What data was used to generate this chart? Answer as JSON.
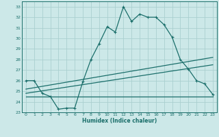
{
  "xlabel": "Humidex (Indice chaleur)",
  "bg_color": "#cce8e8",
  "grid_color": "#aacfcf",
  "line_color": "#1a6e6a",
  "xlim": [
    -0.5,
    23.5
  ],
  "ylim": [
    23,
    33.5
  ],
  "yticks": [
    23,
    24,
    25,
    26,
    27,
    28,
    29,
    30,
    31,
    32,
    33
  ],
  "xticks": [
    0,
    1,
    2,
    3,
    4,
    5,
    6,
    7,
    8,
    9,
    10,
    11,
    12,
    13,
    14,
    15,
    16,
    17,
    18,
    19,
    20,
    21,
    22,
    23
  ],
  "curve1_x": [
    0,
    1,
    2,
    3,
    4,
    5,
    6,
    7,
    8,
    9,
    10,
    11,
    12,
    13,
    14,
    15,
    16,
    17,
    18,
    19,
    20,
    21,
    22,
    23
  ],
  "curve1_y": [
    26.0,
    26.0,
    24.8,
    24.5,
    23.3,
    23.4,
    23.4,
    25.9,
    28.0,
    29.5,
    31.1,
    30.6,
    33.0,
    31.6,
    32.3,
    32.0,
    32.0,
    31.3,
    30.1,
    28.0,
    27.1,
    26.0,
    25.7,
    24.7
  ],
  "curve2_x": [
    0,
    23
  ],
  "curve2_y": [
    25.2,
    28.2
  ],
  "curve3_x": [
    0,
    23
  ],
  "curve3_y": [
    24.8,
    27.5
  ],
  "curve4_x": [
    0,
    23
  ],
  "curve4_y": [
    24.5,
    24.5
  ]
}
